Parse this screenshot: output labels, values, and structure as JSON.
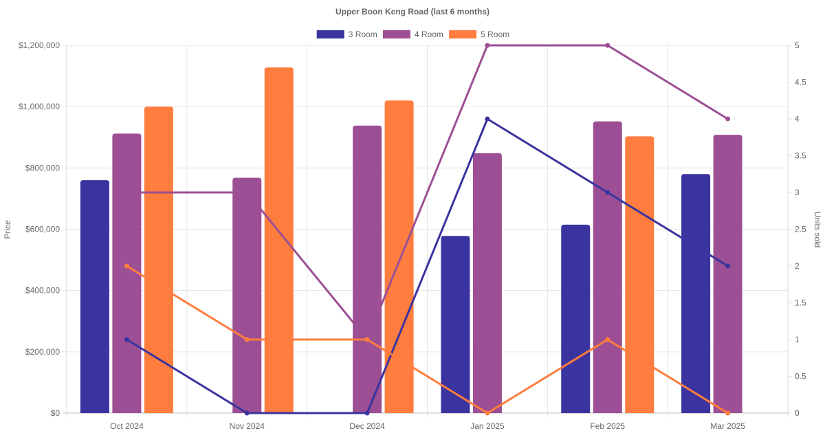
{
  "chart_data": {
    "type": "bar+line",
    "title": "Upper Boon Keng Road (last 6 months)",
    "categories": [
      "Oct 2024",
      "Nov 2024",
      "Dec 2024",
      "Jan 2025",
      "Feb 2025",
      "Mar 2025"
    ],
    "ylabel": "Price",
    "y2label": "Units sold",
    "ylim": [
      0,
      1200000
    ],
    "y2lim": [
      0,
      5
    ],
    "y_ticks": [
      {
        "value": 0,
        "label": "$0"
      },
      {
        "value": 200000,
        "label": "$200,000"
      },
      {
        "value": 400000,
        "label": "$400,000"
      },
      {
        "value": 600000,
        "label": "$600,000"
      },
      {
        "value": 800000,
        "label": "$800,000"
      },
      {
        "value": 1000000,
        "label": "$1,000,000"
      },
      {
        "value": 1200000,
        "label": "$1,200,000"
      }
    ],
    "y2_ticks": [
      {
        "value": 0,
        "label": "0"
      },
      {
        "value": 0.5,
        "label": "0.5"
      },
      {
        "value": 1,
        "label": "1"
      },
      {
        "value": 1.5,
        "label": "1.5"
      },
      {
        "value": 2,
        "label": "2"
      },
      {
        "value": 2.5,
        "label": "2.5"
      },
      {
        "value": 3,
        "label": "3"
      },
      {
        "value": 3.5,
        "label": "3.5"
      },
      {
        "value": 4,
        "label": "4"
      },
      {
        "value": 4.5,
        "label": "4.5"
      },
      {
        "value": 5,
        "label": "5"
      }
    ],
    "legend_position": "top",
    "grid": true,
    "series": [
      {
        "name": "3 Room",
        "key": "3-room",
        "color": "#3a33a0",
        "price": [
          760000,
          null,
          null,
          578000,
          615000,
          780000
        ],
        "units": [
          1,
          0,
          0,
          4,
          3,
          2
        ]
      },
      {
        "name": "4 Room",
        "key": "4-room",
        "color": "#9c4f94",
        "price": [
          912000,
          768000,
          938000,
          848000,
          952000,
          908000
        ],
        "units": [
          3,
          3,
          1,
          5,
          5,
          4
        ]
      },
      {
        "name": "5 Room",
        "key": "5-room",
        "color": "#ff7d3e",
        "price": [
          1000000,
          1128000,
          1020000,
          null,
          903000,
          null
        ],
        "units": [
          2,
          1,
          1,
          0,
          1,
          0
        ]
      }
    ]
  }
}
